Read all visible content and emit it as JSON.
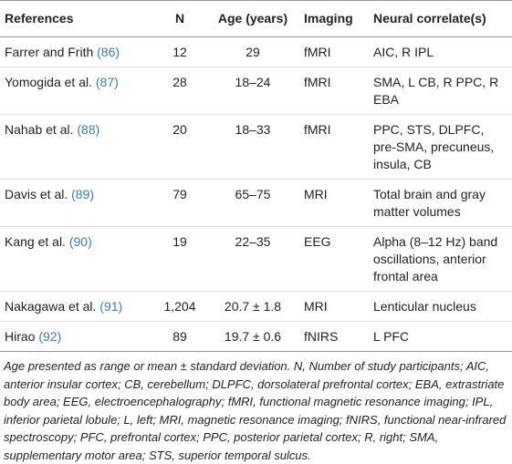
{
  "table": {
    "header": [
      "References",
      "N",
      "Age (years)",
      "Imaging",
      "Neural correlate(s)"
    ],
    "rows": [
      [
        {
          "name": "Farrer and Frith",
          "ref": "(86)"
        },
        "12",
        "29",
        "fMRI",
        "AIC, R IPL"
      ],
      [
        {
          "name": "Yomogida et al.",
          "ref": "(87)"
        },
        "28",
        "18–24",
        "fMRI",
        "SMA, L CB, R PPC, R EBA"
      ],
      [
        {
          "name": "Nahab et al.",
          "ref": "(88)"
        },
        "20",
        "18–33",
        "fMRI",
        "PPC, STS, DLPFC, pre-SMA, precuneus, insula, CB"
      ],
      [
        {
          "name": "Davis et al.",
          "ref": "(89)"
        },
        "79",
        "65–75",
        "MRI",
        "Total brain and gray matter volumes"
      ],
      [
        {
          "name": "Kang et al.",
          "ref": "(90)"
        },
        "19",
        "22–35",
        "EEG",
        "Alpha (8–12 Hz) band oscillations, anterior frontal area"
      ],
      [
        {
          "name": "Nakagawa et al.",
          "ref": "(91)"
        },
        "1,204",
        "20.7 ± 1.8",
        "MRI",
        "Lenticular nucleus"
      ],
      [
        {
          "name": "Hirao",
          "ref": "(92)"
        },
        "89",
        "19.7 ± 0.6",
        "fNIRS",
        "L PFC"
      ]
    ],
    "footnote": "Age presented as range or mean ± standard deviation. N, Number of study participants; AIC, anterior insular cortex; CB, cerebellum; DLPFC, dorsolateral prefrontal cortex; EBA, extrastriate body area; EEG, electroencephalography; fMRI, functional magnetic resonance imaging; IPL, inferior parietal lobule; L, left; MRI, magnetic resonance imaging; fNIRS, functional near-infrared spectroscopy; PFC, prefrontal cortex; PPC, posterior parietal cortex; R, right; SMA, supplementary motor area; STS, superior temporal sulcus."
  }
}
